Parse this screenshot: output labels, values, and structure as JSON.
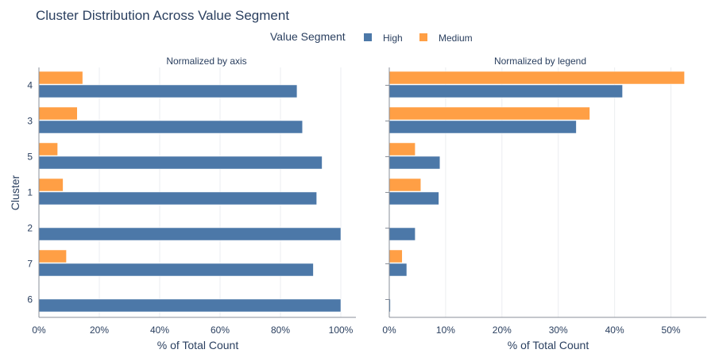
{
  "chart_data": {
    "type": "bar",
    "orientation": "horizontal",
    "title": "Cluster Distribution Across Value Segment",
    "legend": {
      "title": "Value Segment",
      "placement": "top-center",
      "entries": [
        {
          "name": "High",
          "color": "#4c78a8"
        },
        {
          "name": "Medium",
          "color": "#ff9f45"
        }
      ]
    },
    "ylabel": "Cluster",
    "categories": [
      "4",
      "3",
      "5",
      "1",
      "2",
      "7",
      "6"
    ],
    "panels": [
      {
        "subtitle": "Normalized by axis",
        "xlabel": "% of Total Count",
        "xlim": [
          0,
          100
        ],
        "xticks": [
          0,
          20,
          40,
          60,
          80,
          100
        ],
        "xtick_labels": [
          "0%",
          "20%",
          "40%",
          "60%",
          "80%",
          "100%"
        ],
        "series": [
          {
            "name": "High",
            "values": [
              85.5,
              87.3,
              93.8,
              92.0,
              100.0,
              90.9,
              100.0
            ]
          },
          {
            "name": "Medium",
            "values": [
              14.5,
              12.7,
              6.2,
              8.0,
              0.0,
              9.1,
              0.0
            ]
          }
        ]
      },
      {
        "subtitle": "Normalized by legend",
        "xlabel": "% of Total Count",
        "xlim": [
          0,
          55
        ],
        "xticks": [
          0,
          10,
          20,
          30,
          40,
          50
        ],
        "xtick_labels": [
          "0%",
          "10%",
          "20%",
          "30%",
          "40%",
          "50%"
        ],
        "series": [
          {
            "name": "High",
            "values": [
              41.4,
              33.2,
              9.0,
              8.8,
              4.6,
              3.1,
              0.2
            ]
          },
          {
            "name": "Medium",
            "values": [
              52.4,
              35.6,
              4.6,
              5.6,
              0.0,
              2.3,
              0.0
            ]
          }
        ]
      }
    ]
  }
}
